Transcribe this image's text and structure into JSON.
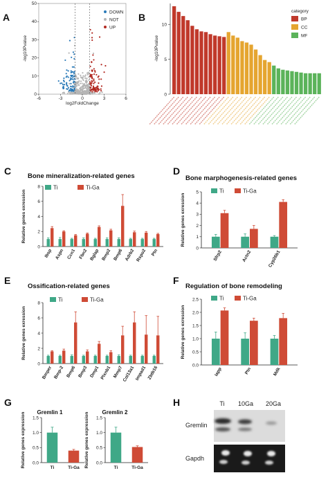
{
  "colors": {
    "ti": "#3fa887",
    "tiga": "#cf4b36",
    "bp": "#c0392b",
    "cc": "#e5a530",
    "mf": "#5bb35a",
    "volcano_down": "#2b7bb9",
    "volcano_up": "#b22a22",
    "volcano_not": "#b5b5b5"
  },
  "panel_letters": [
    "A",
    "B",
    "C",
    "D",
    "E",
    "F",
    "G",
    "H"
  ],
  "panelA": {
    "letter": "A",
    "xlabel": "log2FoldChange",
    "ylabel": "-log10Pvalue",
    "xlim": [
      -6,
      6
    ],
    "ylim": [
      0,
      50
    ],
    "xticks": [
      -6,
      -3,
      0,
      3,
      6
    ],
    "yticks": [
      0,
      10,
      20,
      30,
      40,
      50
    ],
    "xtick_labels": [
      "-6",
      "-3",
      "0",
      "3",
      "6"
    ],
    "ytick_labels": [
      "0",
      "10",
      "20",
      "30",
      "40",
      "50"
    ],
    "fc_threshold": 1,
    "legend": [
      {
        "label": "DOWN",
        "color": "volcano_down"
      },
      {
        "label": "NOT",
        "color": "volcano_not"
      },
      {
        "label": "UP",
        "color": "volcano_up"
      }
    ]
  },
  "panelB": {
    "letter": "B",
    "type": "bar",
    "ylabel": "-log10Pvalue",
    "ylim": [
      0,
      13
    ],
    "yticks": [
      0,
      5,
      10
    ],
    "ytick_labels": [
      "0",
      "5",
      "10"
    ],
    "legend_title": "category",
    "legend": [
      {
        "label": "BP",
        "color": "bp"
      },
      {
        "label": "CC",
        "color": "cc"
      },
      {
        "label": "MF",
        "color": "mf"
      }
    ],
    "categories": [
      {
        "cat": "bp",
        "values": [
          12.6,
          11.8,
          11.2,
          10.6,
          9.8,
          9.3,
          9.0,
          8.9,
          8.6,
          8.4,
          8.3,
          8.2
        ]
      },
      {
        "cat": "cc",
        "values": [
          8.9,
          8.4,
          8.1,
          7.6,
          7.4,
          7.1,
          6.4,
          5.6,
          4.9,
          4.6
        ]
      },
      {
        "cat": "mf",
        "values": [
          4.1,
          3.7,
          3.5,
          3.4,
          3.3,
          3.2,
          3.1,
          3.0,
          3.0,
          3.0,
          3.0
        ]
      }
    ]
  },
  "panelC": {
    "letter": "C",
    "title": "Bone mineralization-related genes",
    "ylabel": "Relative genes exression",
    "legend": [
      {
        "label": "Ti",
        "color": "ti"
      },
      {
        "label": "Ti-Ga",
        "color": "tiga"
      }
    ],
    "ylim": [
      0,
      8
    ],
    "yticks": [
      0,
      2,
      4,
      6,
      8
    ],
    "ytick_labels": [
      "0",
      "2",
      "4",
      "6",
      "8"
    ],
    "chart_data": {
      "type": "bar",
      "categories": [
        "Ibsp",
        "Aspn",
        "Ccn1",
        "Fbn2",
        "Bglap",
        "Bmp2",
        "Bmp6",
        "Adrb2",
        "Rspo2",
        "Ptn"
      ],
      "series": [
        {
          "name": "Ti",
          "values": [
            1,
            1,
            1,
            1,
            1,
            1,
            1,
            1,
            1,
            1
          ],
          "errors": [
            0.15,
            0.2,
            0.1,
            0.15,
            0.1,
            0.15,
            0.15,
            0.1,
            0.1,
            0.1
          ]
        },
        {
          "name": "Ti-Ga",
          "values": [
            2.45,
            2.0,
            1.5,
            1.7,
            2.6,
            2.15,
            5.4,
            1.9,
            1.85,
            1.65
          ],
          "errors": [
            0.2,
            0.1,
            0.1,
            0.1,
            0.15,
            0.15,
            1.5,
            0.15,
            0.15,
            0.1
          ]
        }
      ]
    }
  },
  "panelD": {
    "letter": "D",
    "title": "Bone marphogenesis-related genes",
    "ylabel": "Relative genes exression",
    "legend": [
      {
        "label": "Ti",
        "color": "ti"
      },
      {
        "label": "Ti-Ga",
        "color": "tiga"
      }
    ],
    "ylim": [
      0,
      5
    ],
    "yticks": [
      0,
      1,
      2,
      3,
      4,
      5
    ],
    "ytick_labels": [
      "0",
      "1",
      "2",
      "3",
      "4",
      "5"
    ],
    "chart_data": {
      "type": "bar",
      "categories": [
        "Sfrp2",
        "Actn2",
        "Cyp26b1"
      ],
      "series": [
        {
          "name": "Ti",
          "values": [
            1.0,
            1.0,
            1.0
          ],
          "errors": [
            0.2,
            0.25,
            0.1
          ]
        },
        {
          "name": "Ti-Ga",
          "values": [
            3.1,
            1.7,
            4.1
          ],
          "errors": [
            0.25,
            0.3,
            0.2
          ]
        }
      ]
    }
  },
  "panelE": {
    "letter": "E",
    "title": "Ossification-related genes",
    "ylabel": "Relative genes exression",
    "legend": [
      {
        "label": "Ti",
        "color": "ti"
      },
      {
        "label": "Ti-Ga",
        "color": "tiga"
      }
    ],
    "ylim": [
      0,
      8
    ],
    "yticks": [
      0,
      2,
      4,
      6,
      8
    ],
    "ytick_labels": [
      "0",
      "2",
      "4",
      "6",
      "8"
    ],
    "chart_data": {
      "type": "bar",
      "categories": [
        "Bmper",
        "Bmp-2",
        "Bmp6",
        "Bmp3",
        "Dmp1",
        "Plxnb1",
        "Mmp7",
        "Col13a1",
        "Impad1",
        "Zbtb16"
      ],
      "series": [
        {
          "name": "Ti",
          "values": [
            1,
            1,
            1,
            1,
            1,
            1,
            1,
            1,
            1,
            1
          ],
          "errors": [
            0.1,
            0.1,
            0.15,
            0.1,
            0.1,
            0.1,
            0.15,
            0.1,
            0.1,
            0.1
          ]
        },
        {
          "name": "Ti-Ga",
          "values": [
            1.6,
            1.7,
            5.4,
            1.6,
            2.6,
            1.5,
            3.7,
            5.4,
            3.8,
            3.7
          ],
          "errors": [
            0.1,
            0.2,
            1.4,
            0.2,
            0.3,
            0.2,
            1.2,
            1.4,
            2.5,
            2.5
          ]
        }
      ]
    }
  },
  "panelF": {
    "letter": "F",
    "title": "Regulation of bone remodeling",
    "ylabel": "Relative genes exression",
    "legend": [
      {
        "label": "Ti",
        "color": "ti"
      },
      {
        "label": "Ti-Ga",
        "color": "tiga"
      }
    ],
    "ylim": [
      0,
      2.5
    ],
    "yticks": [
      0,
      0.5,
      1,
      1.5,
      2,
      2.5
    ],
    "ytick_labels": [
      "0.0",
      "0.5",
      "1.0",
      "1.5",
      "2.0",
      "2.5"
    ],
    "chart_data": {
      "type": "bar",
      "categories": [
        "Iapp",
        "Ptn",
        "Mdk"
      ],
      "series": [
        {
          "name": "Ti",
          "values": [
            1.0,
            1.0,
            1.0
          ],
          "errors": [
            0.25,
            0.22,
            0.12
          ]
        },
        {
          "name": "Ti-Ga",
          "values": [
            2.07,
            1.68,
            1.78
          ],
          "errors": [
            0.1,
            0.1,
            0.18
          ]
        }
      ]
    }
  },
  "panelG": {
    "letter": "G",
    "charts": [
      {
        "title": "Gremlin 1",
        "ylabel": "Relative genes expression",
        "ylim": [
          0,
          1.5
        ],
        "yticks": [
          0,
          0.5,
          1,
          1.5
        ],
        "ytick_labels": [
          "0.0",
          "0.5",
          "1.0",
          "1.5"
        ],
        "chart_data": {
          "type": "bar",
          "categories": [
            "Ti",
            "Ti-Ga"
          ],
          "values": [
            1.0,
            0.4
          ],
          "errors": [
            0.18,
            0.04
          ]
        }
      },
      {
        "title": "Gremlin 2",
        "ylabel": "Relative genes expression",
        "ylim": [
          0,
          1.5
        ],
        "yticks": [
          0,
          0.5,
          1,
          1.5
        ],
        "ytick_labels": [
          "0.0",
          "0.5",
          "1.0",
          "1.5"
        ],
        "chart_data": {
          "type": "bar",
          "categories": [
            "Ti",
            "Ti-Ga"
          ],
          "values": [
            1.0,
            0.52
          ],
          "errors": [
            0.18,
            0.04
          ]
        }
      }
    ]
  },
  "panelH": {
    "letter": "H",
    "lanes": [
      "Ti",
      "10Ga",
      "20Ga"
    ],
    "rows": [
      "Gremlin",
      "Gapdh"
    ]
  }
}
